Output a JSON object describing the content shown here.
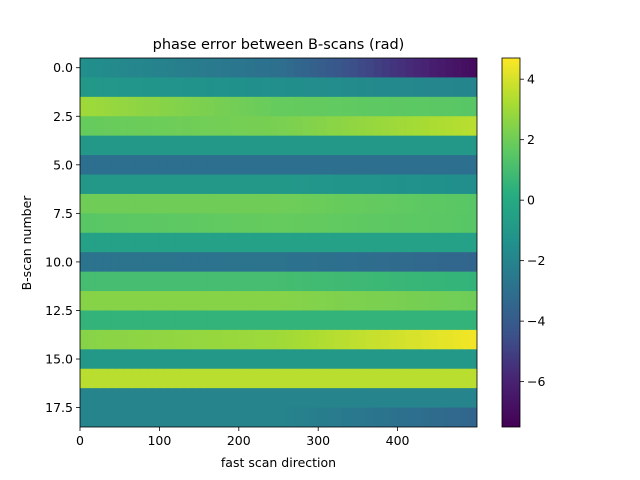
{
  "chart_data": {
    "type": "heatmap",
    "title": "phase error between B-scans (rad)",
    "xlabel": "fast scan direction",
    "ylabel": "B-scan number",
    "colormap": "viridis",
    "x_range": [
      0,
      500
    ],
    "y_range": [
      -0.5,
      18.5
    ],
    "y_inverted": true,
    "x_ticks": [
      "0",
      "100",
      "200",
      "300",
      "400"
    ],
    "x_tick_values": [
      0,
      100,
      200,
      300,
      400
    ],
    "y_ticks": [
      "0.0",
      "2.5",
      "5.0",
      "7.5",
      "10.0",
      "12.5",
      "15.0",
      "17.5"
    ],
    "y_tick_values": [
      0.0,
      2.5,
      5.0,
      7.5,
      10.0,
      12.5,
      15.0,
      17.5
    ],
    "colorbar": {
      "vmin": -7.5,
      "vmax": 4.7,
      "ticks": [
        "4",
        "2",
        "0",
        "−2",
        "−4",
        "−6"
      ],
      "tick_values": [
        4,
        2,
        0,
        -2,
        -4,
        -6
      ]
    },
    "row_values_start_mid_end": [
      [
        -1.5,
        -3.0,
        -7.0
      ],
      [
        -1.0,
        -1.5,
        -2.0
      ],
      [
        3.0,
        1.8,
        1.5
      ],
      [
        1.8,
        2.2,
        3.5
      ],
      [
        -1.0,
        -1.0,
        -1.0
      ],
      [
        -3.0,
        -3.0,
        -3.0
      ],
      [
        -1.0,
        -1.0,
        -1.5
      ],
      [
        2.0,
        2.0,
        1.5
      ],
      [
        1.5,
        1.8,
        1.5
      ],
      [
        -0.5,
        -0.5,
        -0.5
      ],
      [
        -2.8,
        -2.8,
        -3.5
      ],
      [
        1.0,
        1.0,
        0.5
      ],
      [
        2.5,
        2.5,
        2.0
      ],
      [
        0.5,
        0.5,
        0.5
      ],
      [
        2.5,
        3.0,
        4.5
      ],
      [
        -1.0,
        -1.0,
        -1.0
      ],
      [
        3.5,
        3.5,
        3.5
      ],
      [
        -2.0,
        -2.0,
        -2.0
      ],
      [
        -2.0,
        -2.0,
        -3.5
      ]
    ]
  }
}
